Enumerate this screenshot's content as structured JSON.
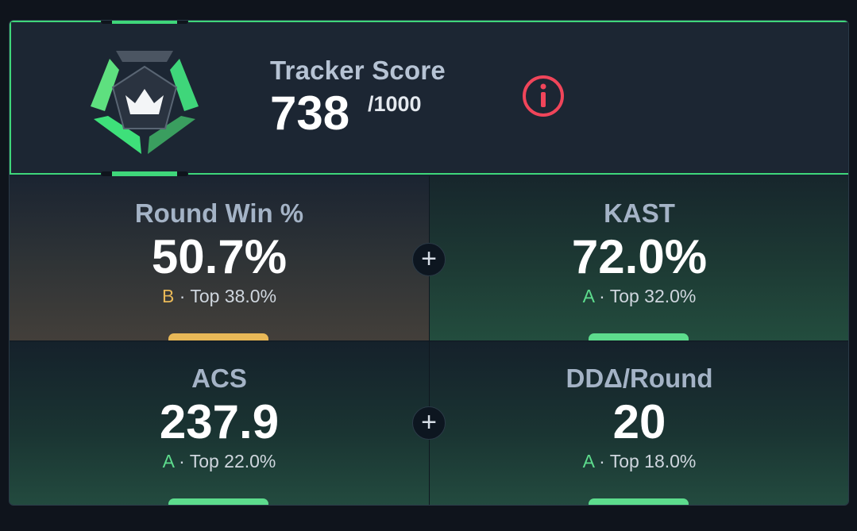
{
  "score": {
    "label": "Tracker Score",
    "value": "738",
    "max": "/1000",
    "accent": "#3fd67a",
    "info_icon": "info-circle-icon",
    "info_color": "#f0455a"
  },
  "stats": [
    {
      "label": "Round Win %",
      "value": "50.7%",
      "grade": "B",
      "rank": "· Top 38.0%",
      "grade_color": "#e8b857",
      "bar_color": "#e8b857"
    },
    {
      "label": "KAST",
      "value": "72.0%",
      "grade": "A",
      "rank": "· Top 32.0%",
      "grade_color": "#5ddc8d",
      "bar_color": "#5ddc8d"
    },
    {
      "label": "ACS",
      "value": "237.9",
      "grade": "A",
      "rank": "· Top 22.0%",
      "grade_color": "#5ddc8d",
      "bar_color": "#5ddc8d"
    },
    {
      "label": "DDΔ/Round",
      "value": "20",
      "grade": "A",
      "rank": "· Top 18.0%",
      "grade_color": "#5ddc8d",
      "bar_color": "#5ddc8d"
    }
  ],
  "icons": {
    "plus": "+",
    "emblem": "crown-shield-icon"
  }
}
